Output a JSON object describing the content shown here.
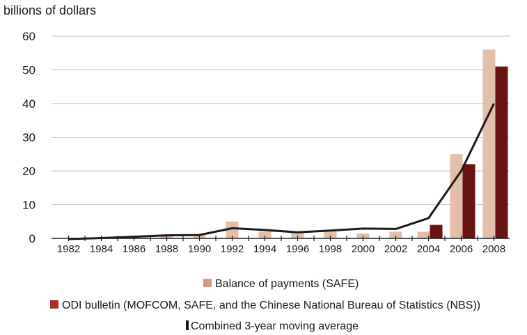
{
  "chart_data": {
    "type": "bar",
    "unit_label": "billions of dollars",
    "title": "",
    "xlabel": "",
    "ylabel": "",
    "ylim": [
      0,
      60
    ],
    "yticks": [
      0,
      10,
      20,
      30,
      40,
      50,
      60
    ],
    "grid": true,
    "legend_placement": "bottom-center",
    "x": [
      1982,
      1983,
      1984,
      1985,
      1986,
      1987,
      1988,
      1989,
      1990,
      1991,
      1992,
      1993,
      1994,
      1995,
      1996,
      1997,
      1998,
      1999,
      2000,
      2001,
      2002,
      2003,
      2004,
      2005,
      2006,
      2007,
      2008
    ],
    "xtick_labels": [
      "1982",
      "1984",
      "1986",
      "1988",
      "1990",
      "1992",
      "1994",
      "1996",
      "1998",
      "2000",
      "2002",
      "2004",
      "2006",
      "2008"
    ],
    "series": [
      {
        "name": "Balance of payments (SAFE)",
        "type": "bar",
        "color": "#e3bfaa",
        "points": [
          [
            1982,
            0.1
          ],
          [
            1984,
            0.1
          ],
          [
            1986,
            0.4
          ],
          [
            1988,
            0.8
          ],
          [
            1990,
            0.8
          ],
          [
            1992,
            5.0
          ],
          [
            1994,
            2.0
          ],
          [
            1996,
            2.0
          ],
          [
            1998,
            2.5
          ],
          [
            2000,
            1.5
          ],
          [
            2002,
            2.0
          ],
          [
            2004,
            2.0
          ],
          [
            2006,
            25.0
          ],
          [
            2008,
            56.0
          ]
        ]
      },
      {
        "name": "ODI bulletin (MOFCOM, SAFE, and the Chinese National Bureau of Statistics (NBS))",
        "type": "bar",
        "color": "#6b1212",
        "points": [
          [
            2004,
            4.0
          ],
          [
            2006,
            22.0
          ],
          [
            2008,
            51.0
          ]
        ]
      },
      {
        "name": "Combined 3-year moving average",
        "type": "line",
        "color": "#1a1a1a",
        "points": [
          [
            1982,
            -0.2
          ],
          [
            1984,
            0.1
          ],
          [
            1986,
            0.5
          ],
          [
            1988,
            0.9
          ],
          [
            1990,
            1.0
          ],
          [
            1992,
            3.0
          ],
          [
            1994,
            2.5
          ],
          [
            1996,
            1.8
          ],
          [
            1998,
            2.3
          ],
          [
            2000,
            2.9
          ],
          [
            2002,
            2.8
          ],
          [
            2004,
            6.0
          ],
          [
            2006,
            20.0
          ],
          [
            2008,
            40.0
          ]
        ]
      }
    ]
  }
}
